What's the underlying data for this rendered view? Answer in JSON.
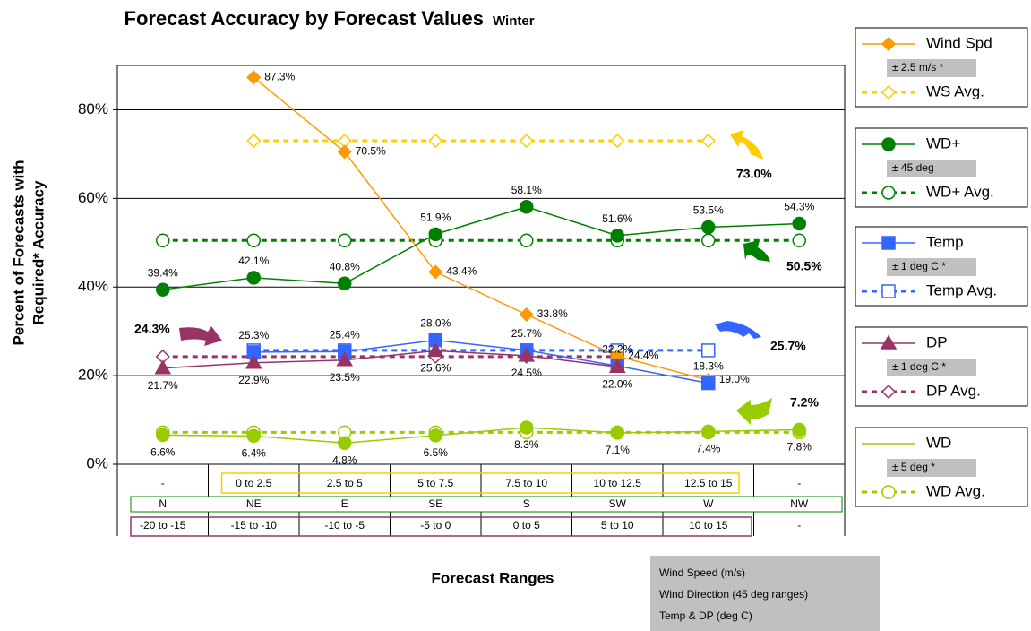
{
  "chart_data": {
    "type": "line",
    "title": "Forecast Accuracy by Forecast Values",
    "subtitle": "Winter",
    "y_label": [
      "Percent of Forecasts with",
      "Required* Accuracy"
    ],
    "x_label": "Forecast Ranges",
    "categories": [
      "N",
      "NE",
      "E",
      "SE",
      "S",
      "SW",
      "W",
      "NW"
    ],
    "range_rows": [
      [
        "-",
        "0 to 2.5",
        "2.5 to 5",
        "5 to 7.5",
        "7.5 to 10",
        "10 to 12.5",
        "12.5 to 15",
        "-"
      ],
      [
        "-20 to -15",
        "-15 to -10",
        "-10 to -5",
        "-5 to 0",
        "0 to 5",
        "5 to 10",
        "10 to 15",
        "-"
      ]
    ],
    "ylim": [
      0,
      90
    ],
    "yticks": [
      {
        "value": 0,
        "label": "0%"
      },
      {
        "value": 20,
        "label": "20%"
      },
      {
        "value": 40,
        "label": "40%"
      },
      {
        "value": 60,
        "label": "60%"
      },
      {
        "value": 80,
        "label": "80%"
      }
    ],
    "grid": true,
    "series": [
      {
        "name": "Wind Spd",
        "color": "#ff9900",
        "marker": "diamond",
        "filled": true,
        "dashed": false,
        "label_pos": "right",
        "values": [
          null,
          87.3,
          70.5,
          43.4,
          33.8,
          24.4,
          19.0,
          null
        ],
        "value_labels": [
          null,
          "87.3%",
          "70.5%",
          "43.4%",
          "33.8%",
          "24.4%",
          "19.0%",
          null
        ]
      },
      {
        "name": "WS Avg.",
        "color": "#ffcc00",
        "marker": "diamond",
        "filled": false,
        "dashed": true,
        "values": [
          null,
          73.0,
          73.0,
          73.0,
          73.0,
          73.0,
          73.0,
          null
        ]
      },
      {
        "name": "WD+",
        "color": "#008000",
        "marker": "circle",
        "filled": true,
        "dashed": false,
        "label_pos": "above",
        "values": [
          39.4,
          42.1,
          40.8,
          51.9,
          58.1,
          51.6,
          53.5,
          54.3
        ],
        "value_labels": [
          "39.4%",
          "42.1%",
          "40.8%",
          "51.9%",
          "58.1%",
          "51.6%",
          "53.5%",
          "54.3%"
        ]
      },
      {
        "name": "WD+ Avg.",
        "color": "#008000",
        "marker": "circle",
        "filled": false,
        "dashed": true,
        "values": [
          50.5,
          50.5,
          50.5,
          50.5,
          50.5,
          50.5,
          50.5,
          50.5
        ]
      },
      {
        "name": "Temp",
        "color": "#3366ff",
        "marker": "square",
        "filled": true,
        "dashed": false,
        "label_pos": "above",
        "values": [
          null,
          25.3,
          25.4,
          28.0,
          25.7,
          22.2,
          18.3,
          null
        ],
        "value_labels": [
          null,
          "25.3%",
          "25.4%",
          "28.0%",
          "25.7%",
          "22.2%",
          "18.3%",
          null
        ]
      },
      {
        "name": "Temp Avg.",
        "color": "#3366ff",
        "marker": "square",
        "filled": false,
        "dashed": true,
        "values": [
          null,
          25.7,
          25.7,
          25.7,
          25.7,
          25.7,
          25.7,
          null
        ]
      },
      {
        "name": "DP",
        "color": "#993366",
        "marker": "triangle",
        "filled": true,
        "dashed": false,
        "label_pos": "below",
        "values": [
          21.7,
          22.9,
          23.5,
          25.6,
          24.5,
          22.0,
          null,
          null
        ],
        "value_labels": [
          "21.7%",
          "22.9%",
          "23.5%",
          "25.6%",
          "24.5%",
          "22.0%",
          null,
          null
        ]
      },
      {
        "name": "DP Avg.",
        "color": "#993366",
        "marker": "diamond",
        "filled": false,
        "dashed": true,
        "values": [
          24.3,
          24.3,
          24.3,
          24.3,
          24.3,
          24.3,
          null,
          null
        ]
      },
      {
        "name": "WD",
        "color": "#99cc00",
        "marker": "circle",
        "filled": true,
        "dashed": false,
        "label_pos": "below",
        "values": [
          6.6,
          6.4,
          4.8,
          6.5,
          8.3,
          7.1,
          7.4,
          7.8
        ],
        "value_labels": [
          "6.6%",
          "6.4%",
          "4.8%",
          "6.5%",
          "8.3%",
          "7.1%",
          "7.4%",
          "7.8%"
        ]
      },
      {
        "name": "WD Avg.",
        "color": "#99cc00",
        "marker": "circle",
        "filled": false,
        "dashed": true,
        "values": [
          7.2,
          7.2,
          7.2,
          7.2,
          7.2,
          7.2,
          7.2,
          7.2
        ]
      }
    ],
    "tolerances": [
      "± 2.5 m/s *",
      "± 45 deg",
      "± 1 deg C *",
      "± 1 deg C *",
      "± 5 deg *"
    ],
    "annotations": [
      "73.0%",
      "50.5%",
      "24.3%",
      "25.7%",
      "7.2%"
    ],
    "note": [
      "Wind Speed (m/s)",
      "Wind Direction (45 deg ranges)",
      "Temp & DP (deg C)"
    ]
  }
}
